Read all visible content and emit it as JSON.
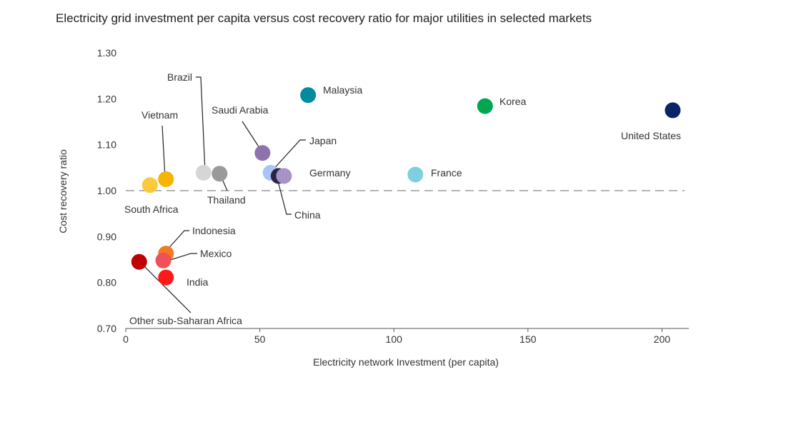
{
  "chart_data": {
    "type": "scatter",
    "title": "Electricity grid investment per capita versus cost recovery ratio for major utilities in selected markets",
    "xlabel": "Electricity network Investment (per capita)",
    "ylabel": "Cost recovery ratio",
    "xlim": [
      0,
      210
    ],
    "ylim": [
      0.7,
      1.3
    ],
    "xticks": [
      0,
      50,
      100,
      150,
      200
    ],
    "xtick_labels": [
      "0",
      "50",
      "100",
      "150",
      "200"
    ],
    "yticks": [
      0.7,
      0.8,
      0.9,
      1.0,
      1.1,
      1.2,
      1.3
    ],
    "ytick_labels": [
      "0.70",
      "0.80",
      "0.90",
      "1.00",
      "1.10",
      "1.20",
      "1.30"
    ],
    "reference_line": {
      "y": 1.0,
      "style": "dashed"
    },
    "grid": false,
    "points": [
      {
        "name": "Malaysia",
        "x": 68,
        "y": 1.208,
        "color": "#008b9e"
      },
      {
        "name": "Korea",
        "x": 134,
        "y": 1.184,
        "color": "#00a651"
      },
      {
        "name": "United States",
        "x": 204,
        "y": 1.175,
        "color": "#0a2566"
      },
      {
        "name": "Saudi Arabia",
        "x": 51,
        "y": 1.082,
        "color": "#8e72ad"
      },
      {
        "name": "Japan",
        "x": 54,
        "y": 1.039,
        "color": "#a9c4f5"
      },
      {
        "name": "China",
        "x": 57,
        "y": 1.032,
        "color": "#2a2445"
      },
      {
        "name": "Germany",
        "x": 59,
        "y": 1.032,
        "color": "#a893c7"
      },
      {
        "name": "France",
        "x": 108,
        "y": 1.035,
        "color": "#7ecfe0"
      },
      {
        "name": "Brazil",
        "x": 29,
        "y": 1.039,
        "color": "#d6d6d6"
      },
      {
        "name": "Thailand",
        "x": 35,
        "y": 1.037,
        "color": "#9a9a9a"
      },
      {
        "name": "Vietnam",
        "x": 15,
        "y": 1.025,
        "color": "#f5b400"
      },
      {
        "name": "South Africa",
        "x": 9,
        "y": 1.012,
        "color": "#fbc93d"
      },
      {
        "name": "Indonesia",
        "x": 15,
        "y": 0.863,
        "color": "#f47a1f"
      },
      {
        "name": "Mexico",
        "x": 14,
        "y": 0.848,
        "color": "#f0505a"
      },
      {
        "name": "India",
        "x": 15,
        "y": 0.811,
        "color": "#ff1a1a"
      },
      {
        "name": "Other sub-Saharan Africa",
        "x": 5,
        "y": 0.845,
        "color": "#c00000"
      }
    ]
  }
}
